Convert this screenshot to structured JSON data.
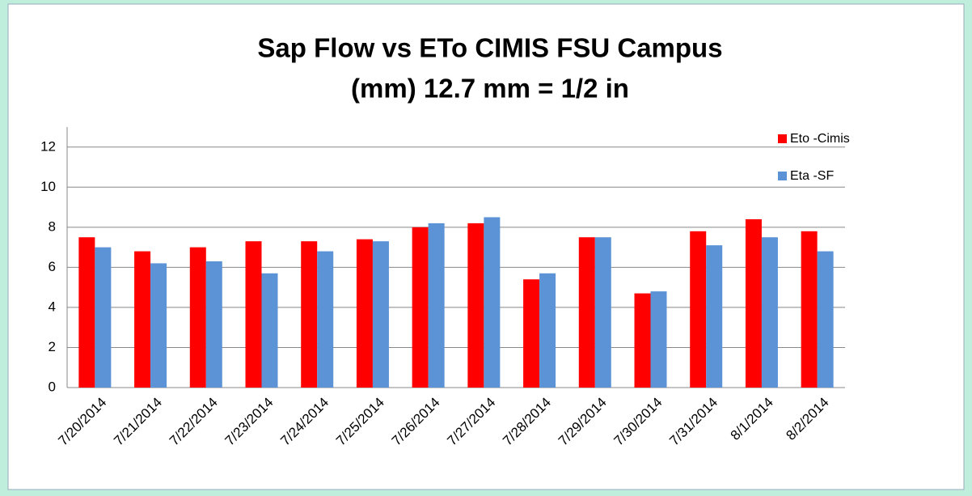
{
  "chart_data": {
    "type": "bar",
    "title": "Sap Flow vs ETo CIMIS FSU Campus",
    "subtitle": "(mm) 12.7 mm = 1/2 in",
    "categories": [
      "7/20/2014",
      "7/21/2014",
      "7/22/2014",
      "7/23/2014",
      "7/24/2014",
      "7/25/2014",
      "7/26/2014",
      "7/27/2014",
      "7/28/2014",
      "7/29/2014",
      "7/30/2014",
      "7/31/2014",
      "8/1/2014",
      "8/2/2014"
    ],
    "series": [
      {
        "name": "Eto -Cimis",
        "color": "#ff0000",
        "values": [
          7.5,
          6.8,
          7.0,
          7.3,
          7.3,
          7.4,
          8.0,
          8.2,
          5.4,
          7.5,
          4.7,
          7.8,
          8.4,
          7.8
        ]
      },
      {
        "name": "Eta -SF",
        "color": "#5b93d6",
        "values": [
          7.0,
          6.2,
          6.3,
          5.7,
          6.8,
          7.3,
          8.2,
          8.5,
          5.7,
          7.5,
          4.8,
          7.1,
          7.5,
          6.8
        ]
      }
    ],
    "ylim": [
      0,
      13
    ],
    "yticks": [
      0,
      2,
      4,
      6,
      8,
      10,
      12
    ],
    "grid": true,
    "legend": "right"
  }
}
